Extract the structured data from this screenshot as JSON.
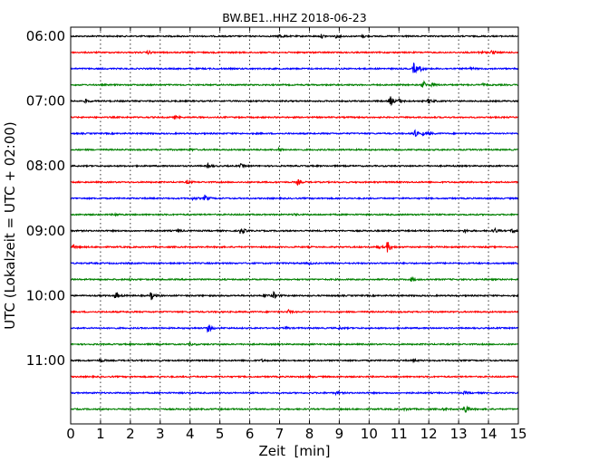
{
  "chart_data": {
    "type": "line",
    "title": "BW.BE1..HHZ 2018-06-23",
    "xlabel": "Zeit  [min]",
    "ylabel": "UTC (Lokalzeit = UTC + 02:00)",
    "xlim": [
      0,
      15
    ],
    "x_ticks": [
      "0",
      "1",
      "2",
      "3",
      "4",
      "5",
      "6",
      "7",
      "8",
      "9",
      "10",
      "11",
      "12",
      "13",
      "14",
      "15"
    ],
    "y_tick_labels": [
      "06:00",
      "07:00",
      "08:00",
      "09:00",
      "10:00",
      "11:00"
    ],
    "grid": "vertical dotted lines at each minute",
    "colors": [
      "#000000",
      "#ff0000",
      "#0000ff",
      "#008000"
    ],
    "traces": [
      {
        "start": "06:00",
        "events": [
          [
            7.0,
            0.6
          ],
          [
            8.4,
            0.5
          ],
          [
            8.9,
            0.5
          ],
          [
            9.8,
            0.35
          ]
        ]
      },
      {
        "start": "06:15",
        "events": [
          [
            2.6,
            0.4
          ],
          [
            13.7,
            0.45
          ],
          [
            14.1,
            0.7
          ]
        ]
      },
      {
        "start": "06:30",
        "events": [
          [
            11.5,
            1.8
          ],
          [
            11.7,
            0.5
          ],
          [
            13.4,
            0.3
          ]
        ]
      },
      {
        "start": "06:45",
        "events": [
          [
            11.8,
            1.4
          ],
          [
            12.1,
            0.5
          ],
          [
            13.8,
            0.35
          ]
        ]
      },
      {
        "start": "07:00",
        "events": [
          [
            0.5,
            0.45
          ],
          [
            10.7,
            1.6
          ],
          [
            11.0,
            0.6
          ],
          [
            12.0,
            0.8
          ]
        ]
      },
      {
        "start": "07:15",
        "events": [
          [
            3.5,
            0.5
          ]
        ]
      },
      {
        "start": "07:30",
        "events": [
          [
            11.5,
            1.3
          ],
          [
            11.8,
            0.4
          ],
          [
            12.0,
            0.3
          ]
        ]
      },
      {
        "start": "07:45",
        "events": [
          [
            7.0,
            0.6
          ],
          [
            4.0,
            0.3
          ]
        ]
      },
      {
        "start": "08:00",
        "events": [
          [
            4.6,
            0.55
          ],
          [
            5.7,
            0.5
          ]
        ]
      },
      {
        "start": "08:15",
        "events": [
          [
            3.9,
            0.5
          ],
          [
            7.6,
            0.8
          ]
        ]
      },
      {
        "start": "08:30",
        "events": [
          [
            4.5,
            1.0
          ],
          [
            4.1,
            0.4
          ]
        ]
      },
      {
        "start": "08:45",
        "events": [
          [
            1.5,
            0.3
          ],
          [
            7.5,
            0.3
          ]
        ]
      },
      {
        "start": "09:00",
        "events": [
          [
            3.6,
            0.5
          ],
          [
            5.7,
            1.3
          ],
          [
            13.2,
            0.5
          ],
          [
            14.2,
            0.8
          ],
          [
            14.8,
            0.7
          ]
        ]
      },
      {
        "start": "09:15",
        "events": [
          [
            0.1,
            0.5
          ],
          [
            10.6,
            1.8
          ],
          [
            10.3,
            0.5
          ]
        ]
      },
      {
        "start": "09:30",
        "events": [
          [
            8.0,
            0.3
          ]
        ]
      },
      {
        "start": "09:45",
        "events": [
          [
            11.4,
            0.6
          ],
          [
            2.0,
            0.3
          ]
        ]
      },
      {
        "start": "10:00",
        "events": [
          [
            1.5,
            1.1
          ],
          [
            2.7,
            1.2
          ],
          [
            6.8,
            1.0
          ],
          [
            6.5,
            0.6
          ]
        ]
      },
      {
        "start": "10:15",
        "events": [
          [
            7.3,
            0.5
          ]
        ]
      },
      {
        "start": "10:30",
        "events": [
          [
            4.6,
            1.3
          ],
          [
            7.2,
            0.4
          ],
          [
            9.0,
            0.3
          ]
        ]
      },
      {
        "start": "10:45",
        "events": [
          [
            4.0,
            0.3
          ]
        ]
      },
      {
        "start": "11:00",
        "events": [
          [
            1.0,
            0.5
          ],
          [
            6.4,
            0.3
          ],
          [
            11.5,
            0.3
          ]
        ]
      },
      {
        "start": "11:15",
        "events": [
          [
            8.0,
            0.2
          ]
        ]
      },
      {
        "start": "11:30",
        "events": [
          [
            8.9,
            0.4
          ],
          [
            13.2,
            0.4
          ]
        ]
      },
      {
        "start": "11:45",
        "events": [
          [
            11.2,
            0.35
          ],
          [
            13.2,
            1.6
          ],
          [
            12.5,
            0.3
          ]
        ]
      }
    ]
  }
}
